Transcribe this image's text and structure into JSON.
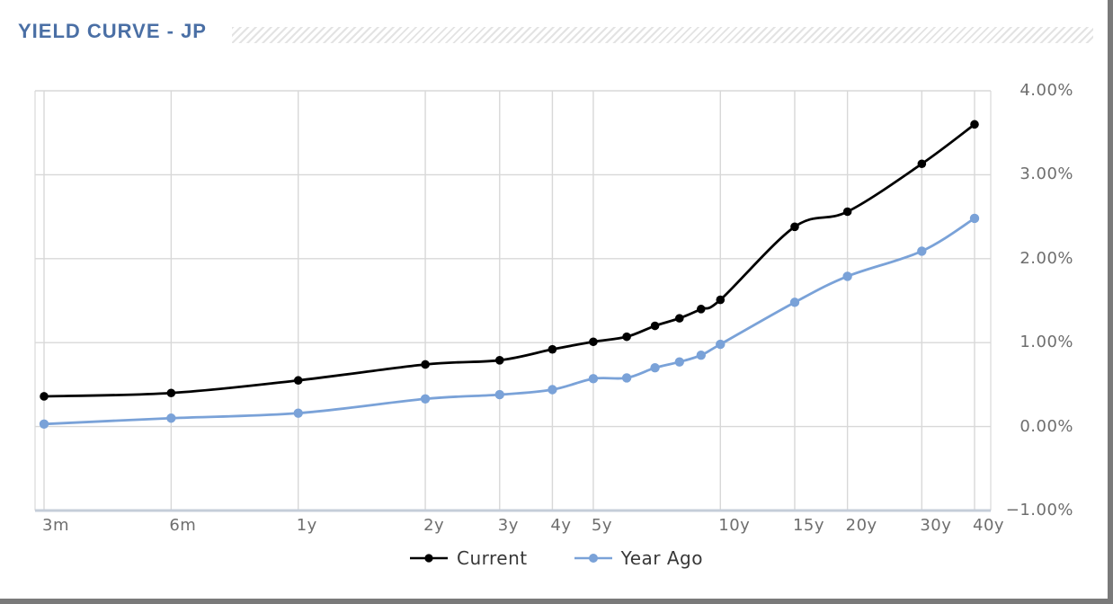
{
  "header": {
    "title": "YIELD CURVE - JP"
  },
  "colors": {
    "title": "#4a6fa5",
    "current": "#000000",
    "year_ago": "#7aa2d8",
    "gridline": "#d8d8d8",
    "axis_line": "#c5cdd9",
    "tick_label": "#6e6e6e",
    "legend_text": "#383838",
    "hatch_stripe": "#e3e3e3",
    "frame": "#7a7a7a"
  },
  "chart_data": {
    "type": "line",
    "title": "YIELD CURVE - JP",
    "x_scale": "log",
    "grid": true,
    "legend_position": "bottom",
    "legend": [
      "Current",
      "Year Ago"
    ],
    "x_tick_labels": [
      "3m",
      "6m",
      "1y",
      "2y",
      "3y",
      "4y",
      "5y",
      "10y",
      "15y",
      "20y",
      "30y",
      "40y"
    ],
    "x_tick_years": [
      0.25,
      0.5,
      1,
      2,
      3,
      4,
      5,
      10,
      15,
      20,
      30,
      40
    ],
    "y_tick_labels": [
      "4.00%",
      "3.00%",
      "2.00%",
      "1.00%",
      "0.00%",
      "−1.00%"
    ],
    "ylim": [
      -1,
      4
    ],
    "y_step": 1,
    "x_years": [
      0.25,
      0.5,
      1,
      2,
      3,
      4,
      5,
      6,
      7,
      8,
      9,
      10,
      15,
      20,
      30,
      40
    ],
    "series": [
      {
        "name": "Current",
        "color": "#000000",
        "values": [
          0.36,
          0.4,
          0.55,
          0.74,
          0.79,
          0.92,
          1.01,
          1.07,
          1.2,
          1.29,
          1.4,
          1.51,
          2.38,
          2.56,
          3.13,
          3.6
        ]
      },
      {
        "name": "Year Ago",
        "color": "#7aa2d8",
        "values": [
          0.03,
          0.1,
          0.16,
          0.33,
          0.38,
          0.44,
          0.57,
          0.58,
          0.7,
          0.77,
          0.85,
          0.98,
          1.48,
          1.79,
          2.09,
          2.48
        ]
      }
    ]
  }
}
